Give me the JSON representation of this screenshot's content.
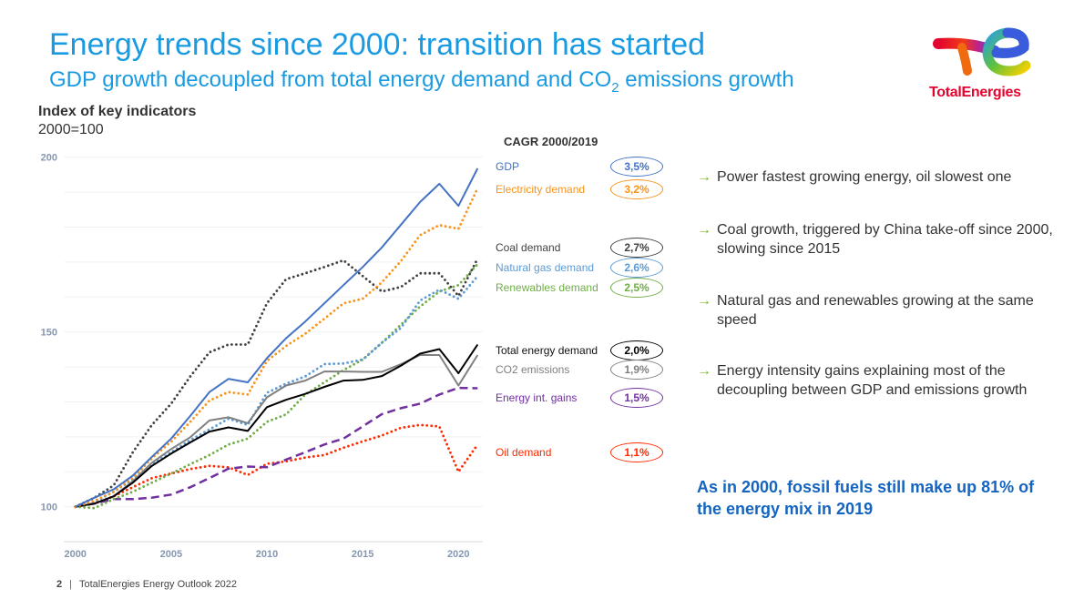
{
  "header": {
    "title": "Energy trends since 2000: transition has started",
    "subtitle_parts": [
      "GDP growth decoupled from total energy demand and CO",
      "2",
      " emissions growth"
    ]
  },
  "logo": {
    "text": "TotalEnergies"
  },
  "legend": {
    "title": "CAGR 2000/2019",
    "items": [
      {
        "label": "GDP",
        "cagr": "3,5%",
        "color": "#4472C4"
      },
      {
        "label": "Electricity demand",
        "cagr": "3,2%",
        "color": "#F7941D"
      },
      {
        "label": "Coal demand",
        "cagr": "2,7%",
        "color": "#404040"
      },
      {
        "label": "Natural gas demand",
        "cagr": "2,6%",
        "color": "#5B9BD5"
      },
      {
        "label": "Renewables demand",
        "cagr": "2,5%",
        "color": "#70AD47"
      },
      {
        "label": "Total energy demand",
        "cagr": "2,0%",
        "color": "#000000"
      },
      {
        "label": "CO2 emissions",
        "cagr": "1,9%",
        "color": "#808080"
      },
      {
        "label": "Energy int. gains",
        "cagr": "1,5%",
        "color": "#7030A0"
      },
      {
        "label": "Oil demand",
        "cagr": "1,1%",
        "color": "#FF2A00"
      }
    ]
  },
  "bullets": [
    "Power fastest growing energy, oil slowest one",
    "Coal growth, triggered by China take-off since 2000, slowing since 2015",
    "Natural gas and renewables growing at the same speed",
    "Energy intensity gains explaining most of the decoupling between GDP and emissions growth"
  ],
  "bullet_arrow": "→",
  "highlight": "As in 2000, fossil fuels still make up 81% of the energy mix in 2019",
  "footer": {
    "page": "2",
    "separator": "|",
    "text": "TotalEnergies Energy Outlook 2022"
  },
  "chart_data": {
    "type": "line",
    "title": "Index of key indicators",
    "subtitle": "2000=100",
    "x": [
      2000,
      2001,
      2002,
      2003,
      2004,
      2005,
      2006,
      2007,
      2008,
      2009,
      2010,
      2011,
      2012,
      2013,
      2014,
      2015,
      2016,
      2017,
      2018,
      2019,
      2020,
      2021
    ],
    "xticks": [
      2000,
      2005,
      2010,
      2015,
      2020
    ],
    "yticks": [
      100,
      150,
      200
    ],
    "ylim": [
      90,
      200
    ],
    "grid": "horizontal every 10",
    "legend": "right",
    "series": [
      {
        "name": "GDP",
        "style": "solid",
        "color": "#4472C4",
        "values": [
          100,
          102.6,
          105,
          108.9,
          114.3,
          119.5,
          126,
          132.8,
          136.6,
          135.6,
          142.5,
          148.2,
          153,
          158.2,
          163.4,
          168.6,
          174.2,
          180.7,
          187.2,
          192.4,
          186.1,
          196.8
        ]
      },
      {
        "name": "Electricity demand",
        "style": "dotted",
        "color": "#F7941D",
        "values": [
          100,
          101.7,
          104.3,
          108.2,
          113.9,
          118.6,
          124.3,
          130.4,
          132.8,
          132.1,
          141.7,
          146,
          149.5,
          153.8,
          158.2,
          159.5,
          164.2,
          170.3,
          177.7,
          180.6,
          179.5,
          191.1
        ]
      },
      {
        "name": "Coal demand",
        "style": "dotted",
        "color": "#404040",
        "values": [
          100,
          102.6,
          106.1,
          115.6,
          123.4,
          129.5,
          137.3,
          144.2,
          146.4,
          146.4,
          158.2,
          165.1,
          166.8,
          168.6,
          170.5,
          166,
          161.6,
          162.9,
          166.8,
          166.8,
          160.3,
          171
        ]
      },
      {
        "name": "Natural gas demand",
        "style": "dotted",
        "color": "#5B9BD5",
        "values": [
          100,
          101.3,
          104.3,
          107.8,
          112.2,
          115.6,
          119.1,
          122.1,
          125.2,
          123.4,
          132.6,
          135.2,
          137.3,
          140.8,
          141,
          142.1,
          146.9,
          151.2,
          159,
          162.1,
          159.5,
          166
        ]
      },
      {
        "name": "Renewables demand",
        "style": "dotted",
        "color": "#70AD47",
        "values": [
          100,
          99.6,
          102.2,
          104.3,
          106.9,
          109.5,
          112.2,
          114.8,
          117.8,
          119.5,
          124.3,
          126.4,
          132.1,
          135.6,
          139.1,
          142.1,
          146.9,
          152.1,
          157.3,
          161.6,
          163.4,
          169.4
        ]
      },
      {
        "name": "Total energy demand",
        "style": "solid",
        "color": "#000000",
        "values": [
          100,
          100.9,
          103,
          106.9,
          111.7,
          115.2,
          118.4,
          121.5,
          122.7,
          121.7,
          128.5,
          130.6,
          132.3,
          134.3,
          136.1,
          136.3,
          137.4,
          140.4,
          143.8,
          145.1,
          138.2,
          146.4
        ]
      },
      {
        "name": "CO2 emissions",
        "style": "solid",
        "color": "#808080",
        "values": [
          100,
          100.9,
          103,
          107.3,
          112.6,
          116.5,
          119.9,
          124.7,
          125.6,
          123.9,
          131.3,
          134.7,
          136.1,
          138.7,
          138.7,
          138.6,
          138.6,
          140.8,
          143.4,
          143.4,
          134.7,
          143.4
        ]
      },
      {
        "name": "Energy int. gains",
        "style": "dashed",
        "color": "#7030A0",
        "values": [
          100,
          100.9,
          102.2,
          102.2,
          102.6,
          103.5,
          105.6,
          108.2,
          110.9,
          111.5,
          111.3,
          113.5,
          115.6,
          117.8,
          119.5,
          123,
          126.5,
          128.2,
          129.5,
          132.1,
          134,
          133.9
        ]
      },
      {
        "name": "Oil demand",
        "style": "dotted",
        "color": "#FF2A00",
        "values": [
          100,
          100.9,
          103,
          105.6,
          108.2,
          109.5,
          110.8,
          111.7,
          111.3,
          109.1,
          112.3,
          113,
          114.1,
          114.8,
          116.9,
          118.7,
          120.4,
          122.6,
          123.4,
          123,
          110,
          117.8
        ]
      }
    ]
  }
}
